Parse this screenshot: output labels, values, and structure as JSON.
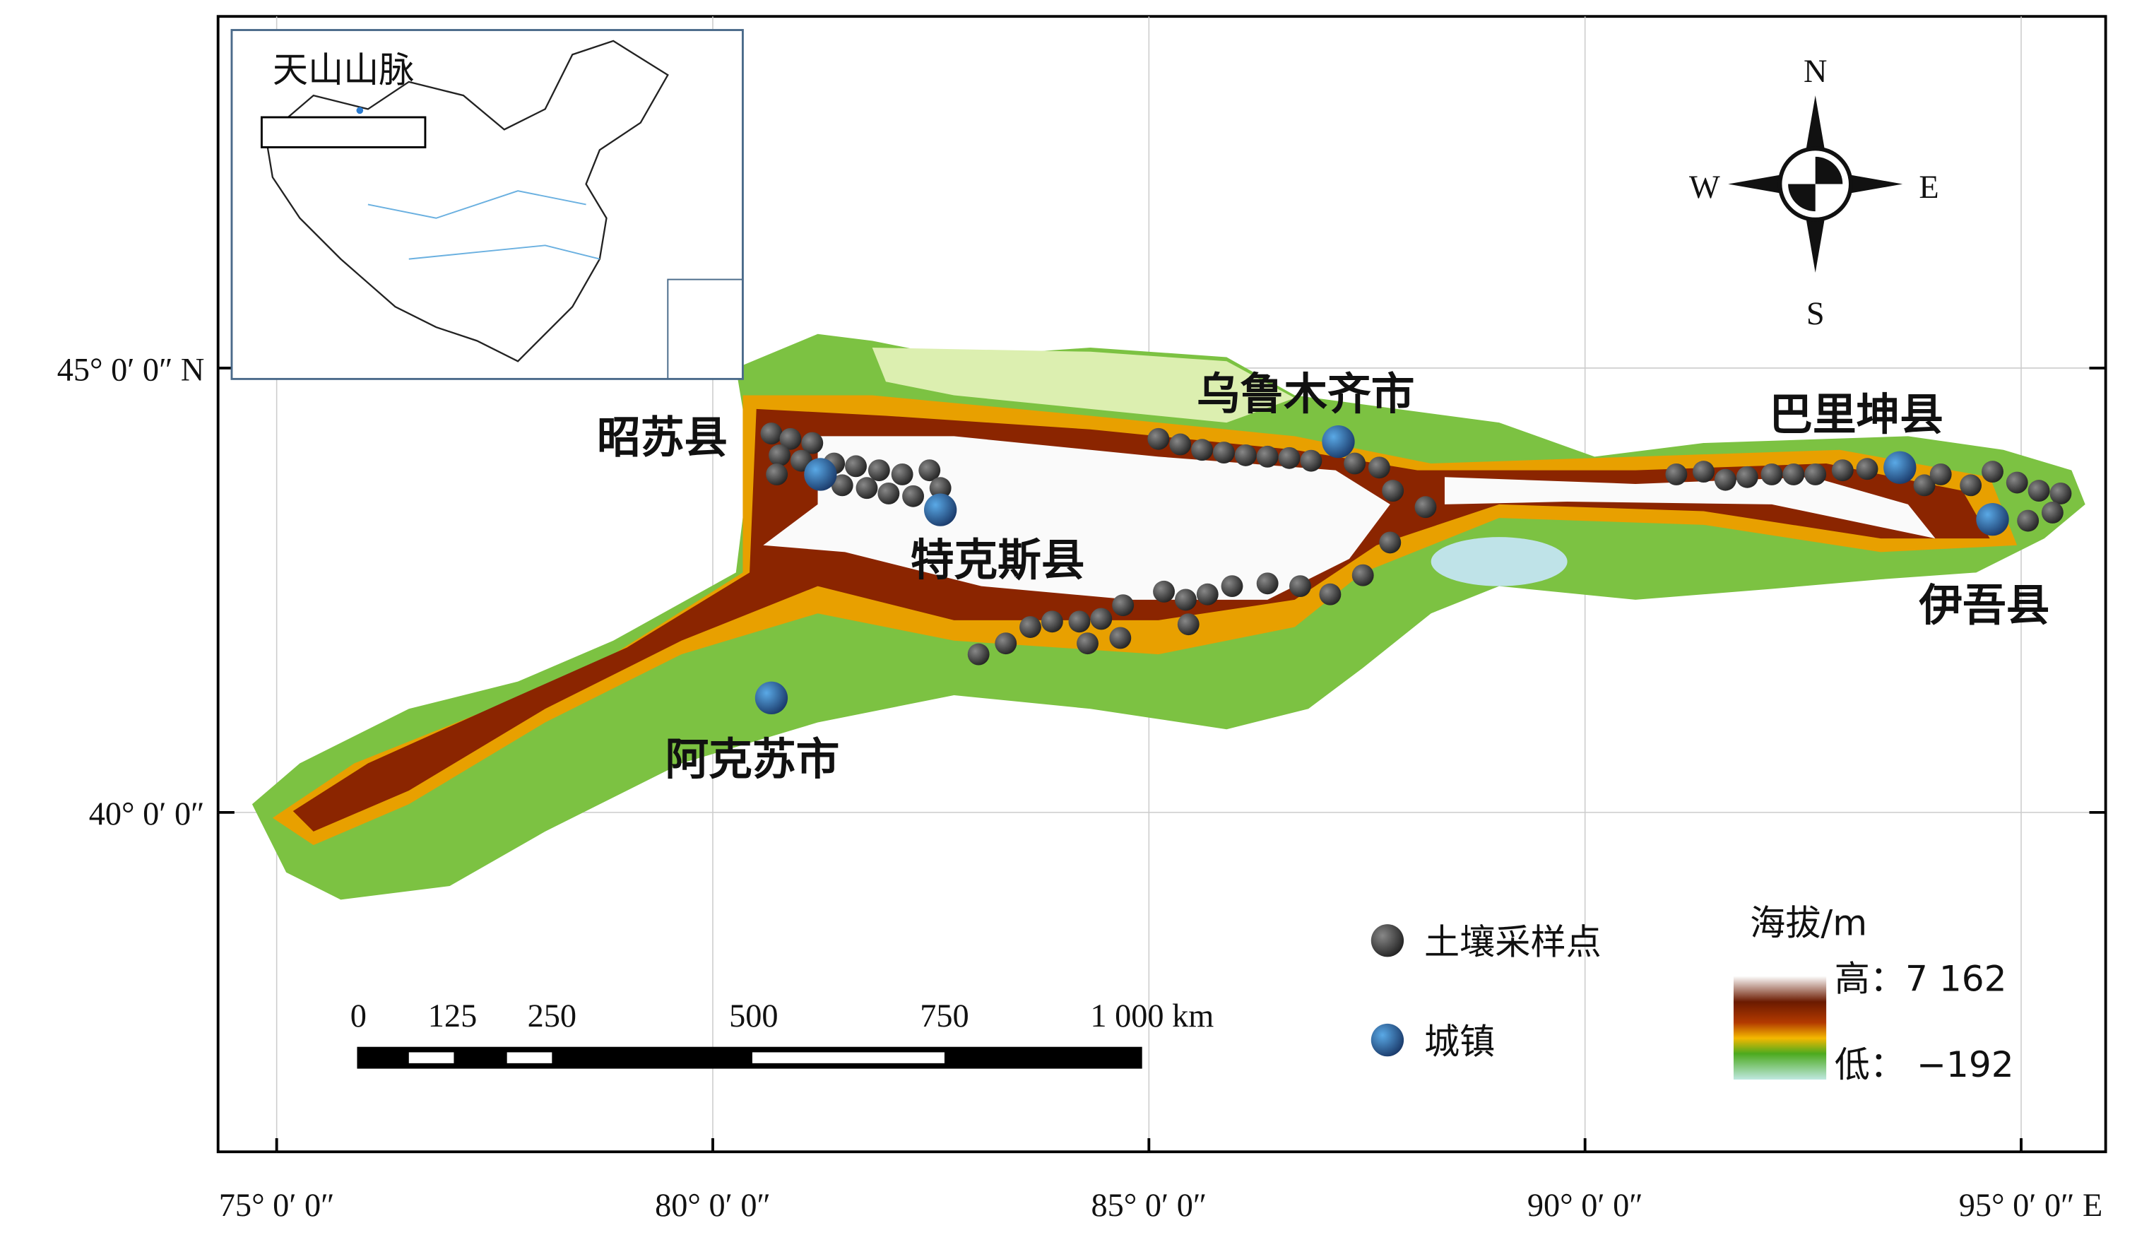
{
  "map": {
    "inset": {
      "title": "天山山脉"
    },
    "axes": {
      "x_labels": [
        "75° 0′ 0″",
        "80° 0′ 0″",
        "85° 0′ 0″",
        "90° 0′ 0″",
        "95° 0′ 0″ E"
      ],
      "y_labels": [
        "45° 0′ 0″ N",
        "40° 0′ 0″"
      ]
    },
    "cities": [
      "昭苏县",
      "特克斯县",
      "乌鲁木齐市",
      "巴里坤县",
      "伊吾县",
      "阿克苏市"
    ],
    "compass": {
      "n": "N",
      "e": "E",
      "s": "S",
      "w": "W"
    },
    "scale_bar": [
      "0",
      "125",
      "250",
      "500",
      "750",
      "1 000 km"
    ],
    "legend": {
      "sample": "土壤采样点",
      "town": "城镇",
      "elev_title": "海拔/m",
      "high": "高：7 162",
      "low": "低： −192"
    }
  }
}
